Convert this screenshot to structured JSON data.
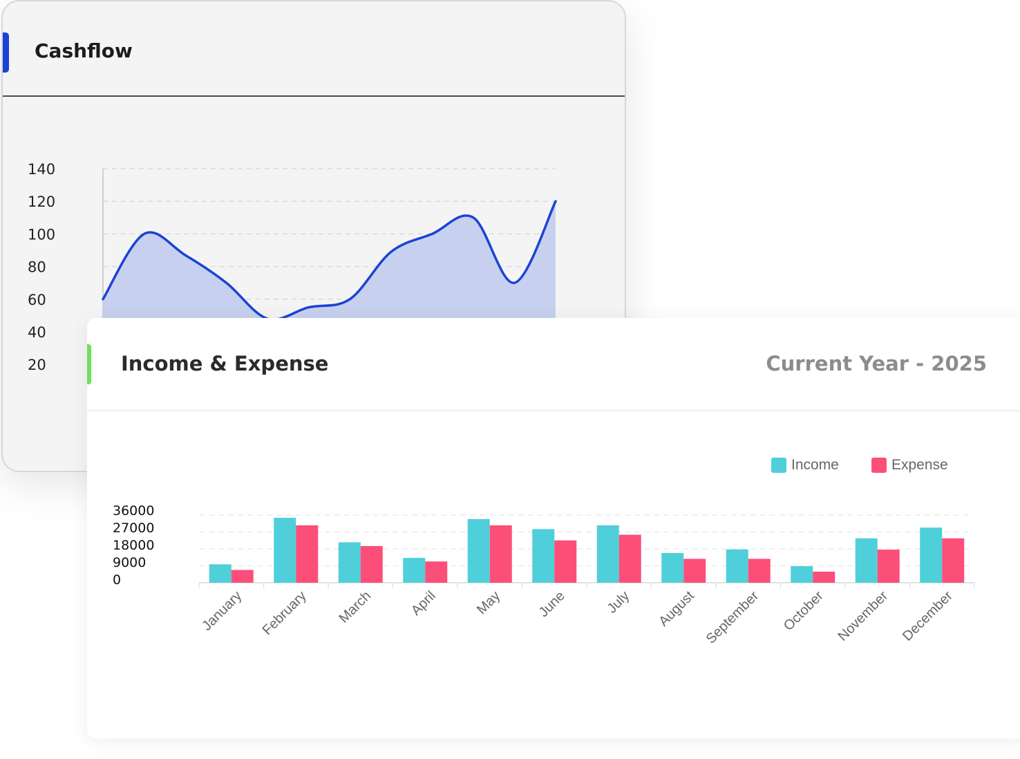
{
  "cashflow": {
    "title": "Cashflow",
    "colors": {
      "accent": "#1a43d6",
      "line": "#1a43d6",
      "fill": "#c7d1ef"
    }
  },
  "income_expense": {
    "title": "Income & Expense",
    "subtitle": "Current Year - 2025",
    "colors": {
      "accent": "#6ee05a",
      "income": "#4fcfda",
      "expense": "#fb4f7a"
    }
  },
  "chart_data": [
    {
      "type": "area",
      "title": "Cashflow",
      "ylim": [
        0,
        140
      ],
      "yticks": [
        20,
        40,
        60,
        80,
        100,
        120,
        140
      ],
      "grid": true,
      "x": [
        0,
        1,
        2,
        3,
        4,
        5,
        6,
        7,
        8,
        9,
        10,
        11
      ],
      "values": [
        60,
        100,
        87,
        70,
        48,
        55,
        60,
        89,
        100,
        110,
        70,
        120
      ]
    },
    {
      "type": "bar",
      "title": "Income & Expense",
      "categories": [
        "January",
        "February",
        "March",
        "April",
        "May",
        "June",
        "July",
        "August",
        "September",
        "October",
        "November",
        "December"
      ],
      "series": [
        {
          "name": "Income",
          "values": [
            9800,
            34500,
            21500,
            13200,
            33800,
            28500,
            30500,
            15800,
            17700,
            8800,
            23600,
            29300
          ]
        },
        {
          "name": "Expense",
          "values": [
            6800,
            30500,
            19500,
            11300,
            30500,
            22500,
            25500,
            12700,
            12700,
            5900,
            17600,
            23600
          ]
        }
      ],
      "yticks": [
        0,
        9000,
        18000,
        27000,
        36000
      ],
      "ylim": [
        0,
        36000
      ],
      "legend": "top-right",
      "grid": true
    }
  ]
}
